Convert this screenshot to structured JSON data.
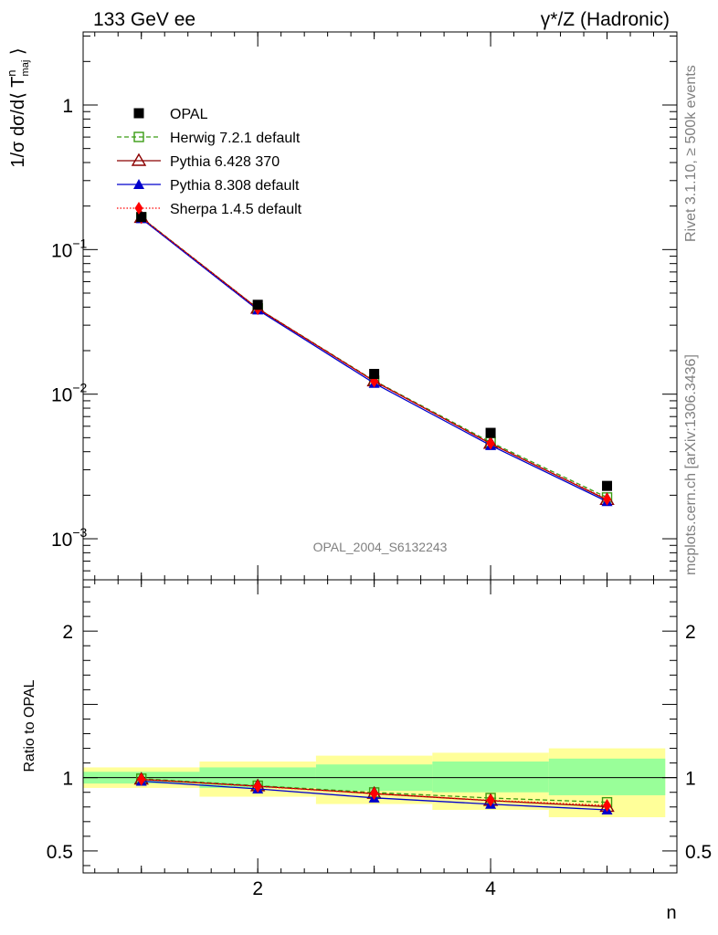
{
  "header": {
    "left": "133 GeV ee",
    "right": "γ*/Z (Hadronic)"
  },
  "side_labels": {
    "rivet": "Rivet 3.1.10, ≥ 500k events",
    "mcplots": "mcplots.cern.ch [arXiv:1306.3436]"
  },
  "watermark": "OPAL_2004_S6132243",
  "chart_data": [
    {
      "type": "line",
      "panel": "main",
      "yscale": "log",
      "ylabel": "1/σ dσ/d⟨ T^n_maj ⟩",
      "ylim": [
        0.00052,
        3.2
      ],
      "xlim": [
        0.5,
        5.6
      ],
      "yticks": [
        {
          "value": 0.001,
          "base": "10",
          "exp": "−3"
        },
        {
          "value": 0.01,
          "base": "10",
          "exp": "−2"
        },
        {
          "value": 0.1,
          "base": "10",
          "exp": "−1"
        },
        {
          "value": 1,
          "base": "1",
          "exp": ""
        }
      ],
      "x": [
        1,
        2,
        3,
        4,
        5
      ],
      "series": [
        {
          "name": "OPAL",
          "color": "#000000",
          "marker": "square",
          "values": [
            0.168,
            0.0415,
            0.0138,
            0.0054,
            0.00232
          ]
        },
        {
          "name": "Herwig 7.2.1 default",
          "color": "#3a9c14",
          "marker": "open-square",
          "dash": "5,3",
          "values": [
            0.167,
            0.0392,
            0.0124,
            0.00465,
            0.00193
          ]
        },
        {
          "name": "Pythia 6.428 370",
          "color": "#8b0000",
          "marker": "open-triangle",
          "dash": "",
          "values": [
            0.166,
            0.0391,
            0.0123,
            0.00455,
            0.00186
          ]
        },
        {
          "name": "Pythia 8.308 default",
          "color": "#0000cc",
          "marker": "triangle",
          "dash": "",
          "values": [
            0.164,
            0.0383,
            0.0119,
            0.00442,
            0.00181
          ]
        },
        {
          "name": "Sherpa 1.4.5 default",
          "color": "#ff0000",
          "marker": "diamond",
          "dash": "1.5,2",
          "values": [
            0.166,
            0.039,
            0.0123,
            0.00456,
            0.00188
          ]
        }
      ]
    },
    {
      "type": "line",
      "panel": "ratio",
      "ylabel": "Ratio to OPAL",
      "xlabel": "n",
      "ylim": [
        0.35,
        2.35
      ],
      "xlim": [
        0.5,
        5.6
      ],
      "yticks": [
        0.5,
        1,
        2
      ],
      "xticks": [
        2,
        4
      ],
      "bands": {
        "edges": [
          0.5,
          1.5,
          2.5,
          3.5,
          4.5,
          5.5
        ],
        "stat": [
          [
            0.96,
            1.04
          ],
          [
            0.93,
            1.07
          ],
          [
            0.91,
            1.09
          ],
          [
            0.9,
            1.11
          ],
          [
            0.88,
            1.13
          ]
        ],
        "total": [
          [
            0.93,
            1.07
          ],
          [
            0.87,
            1.11
          ],
          [
            0.82,
            1.15
          ],
          [
            0.78,
            1.17
          ],
          [
            0.73,
            1.2
          ]
        ]
      },
      "series": [
        {
          "name": "Herwig 7.2.1 default",
          "values": [
            0.993,
            0.945,
            0.899,
            0.861,
            0.832
          ]
        },
        {
          "name": "Pythia 6.428 370",
          "values": [
            0.988,
            0.942,
            0.891,
            0.843,
            0.802
          ]
        },
        {
          "name": "Pythia 8.308 default",
          "values": [
            0.976,
            0.923,
            0.862,
            0.819,
            0.78
          ]
        },
        {
          "name": "Sherpa 1.4.5 default",
          "values": [
            0.988,
            0.94,
            0.891,
            0.845,
            0.81
          ]
        }
      ]
    }
  ]
}
